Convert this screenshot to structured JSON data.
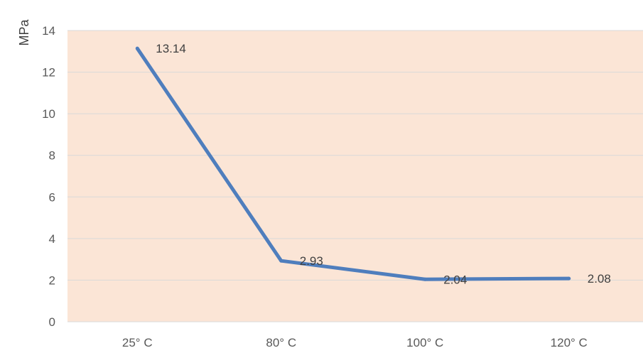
{
  "chart_data": {
    "type": "line",
    "title": "",
    "xlabel": "",
    "ylabel": "MPa",
    "categories": [
      "25° C",
      "80° C",
      "100° C",
      "120° C"
    ],
    "series": [
      {
        "values": [
          13.14,
          2.93,
          2.04,
          2.08
        ]
      }
    ],
    "data_labels": [
      "13.14",
      "2.93",
      "2.04",
      "2.08"
    ],
    "ylim": [
      0,
      14
    ],
    "yticks": [
      "0",
      "2",
      "4",
      "6",
      "8",
      "10",
      "12",
      "14"
    ],
    "grid": true,
    "legend": "none",
    "colors": {
      "plot_background": "#FBE5D6",
      "line": "#4F7EBD",
      "gridline": "#D9D9D9"
    }
  }
}
